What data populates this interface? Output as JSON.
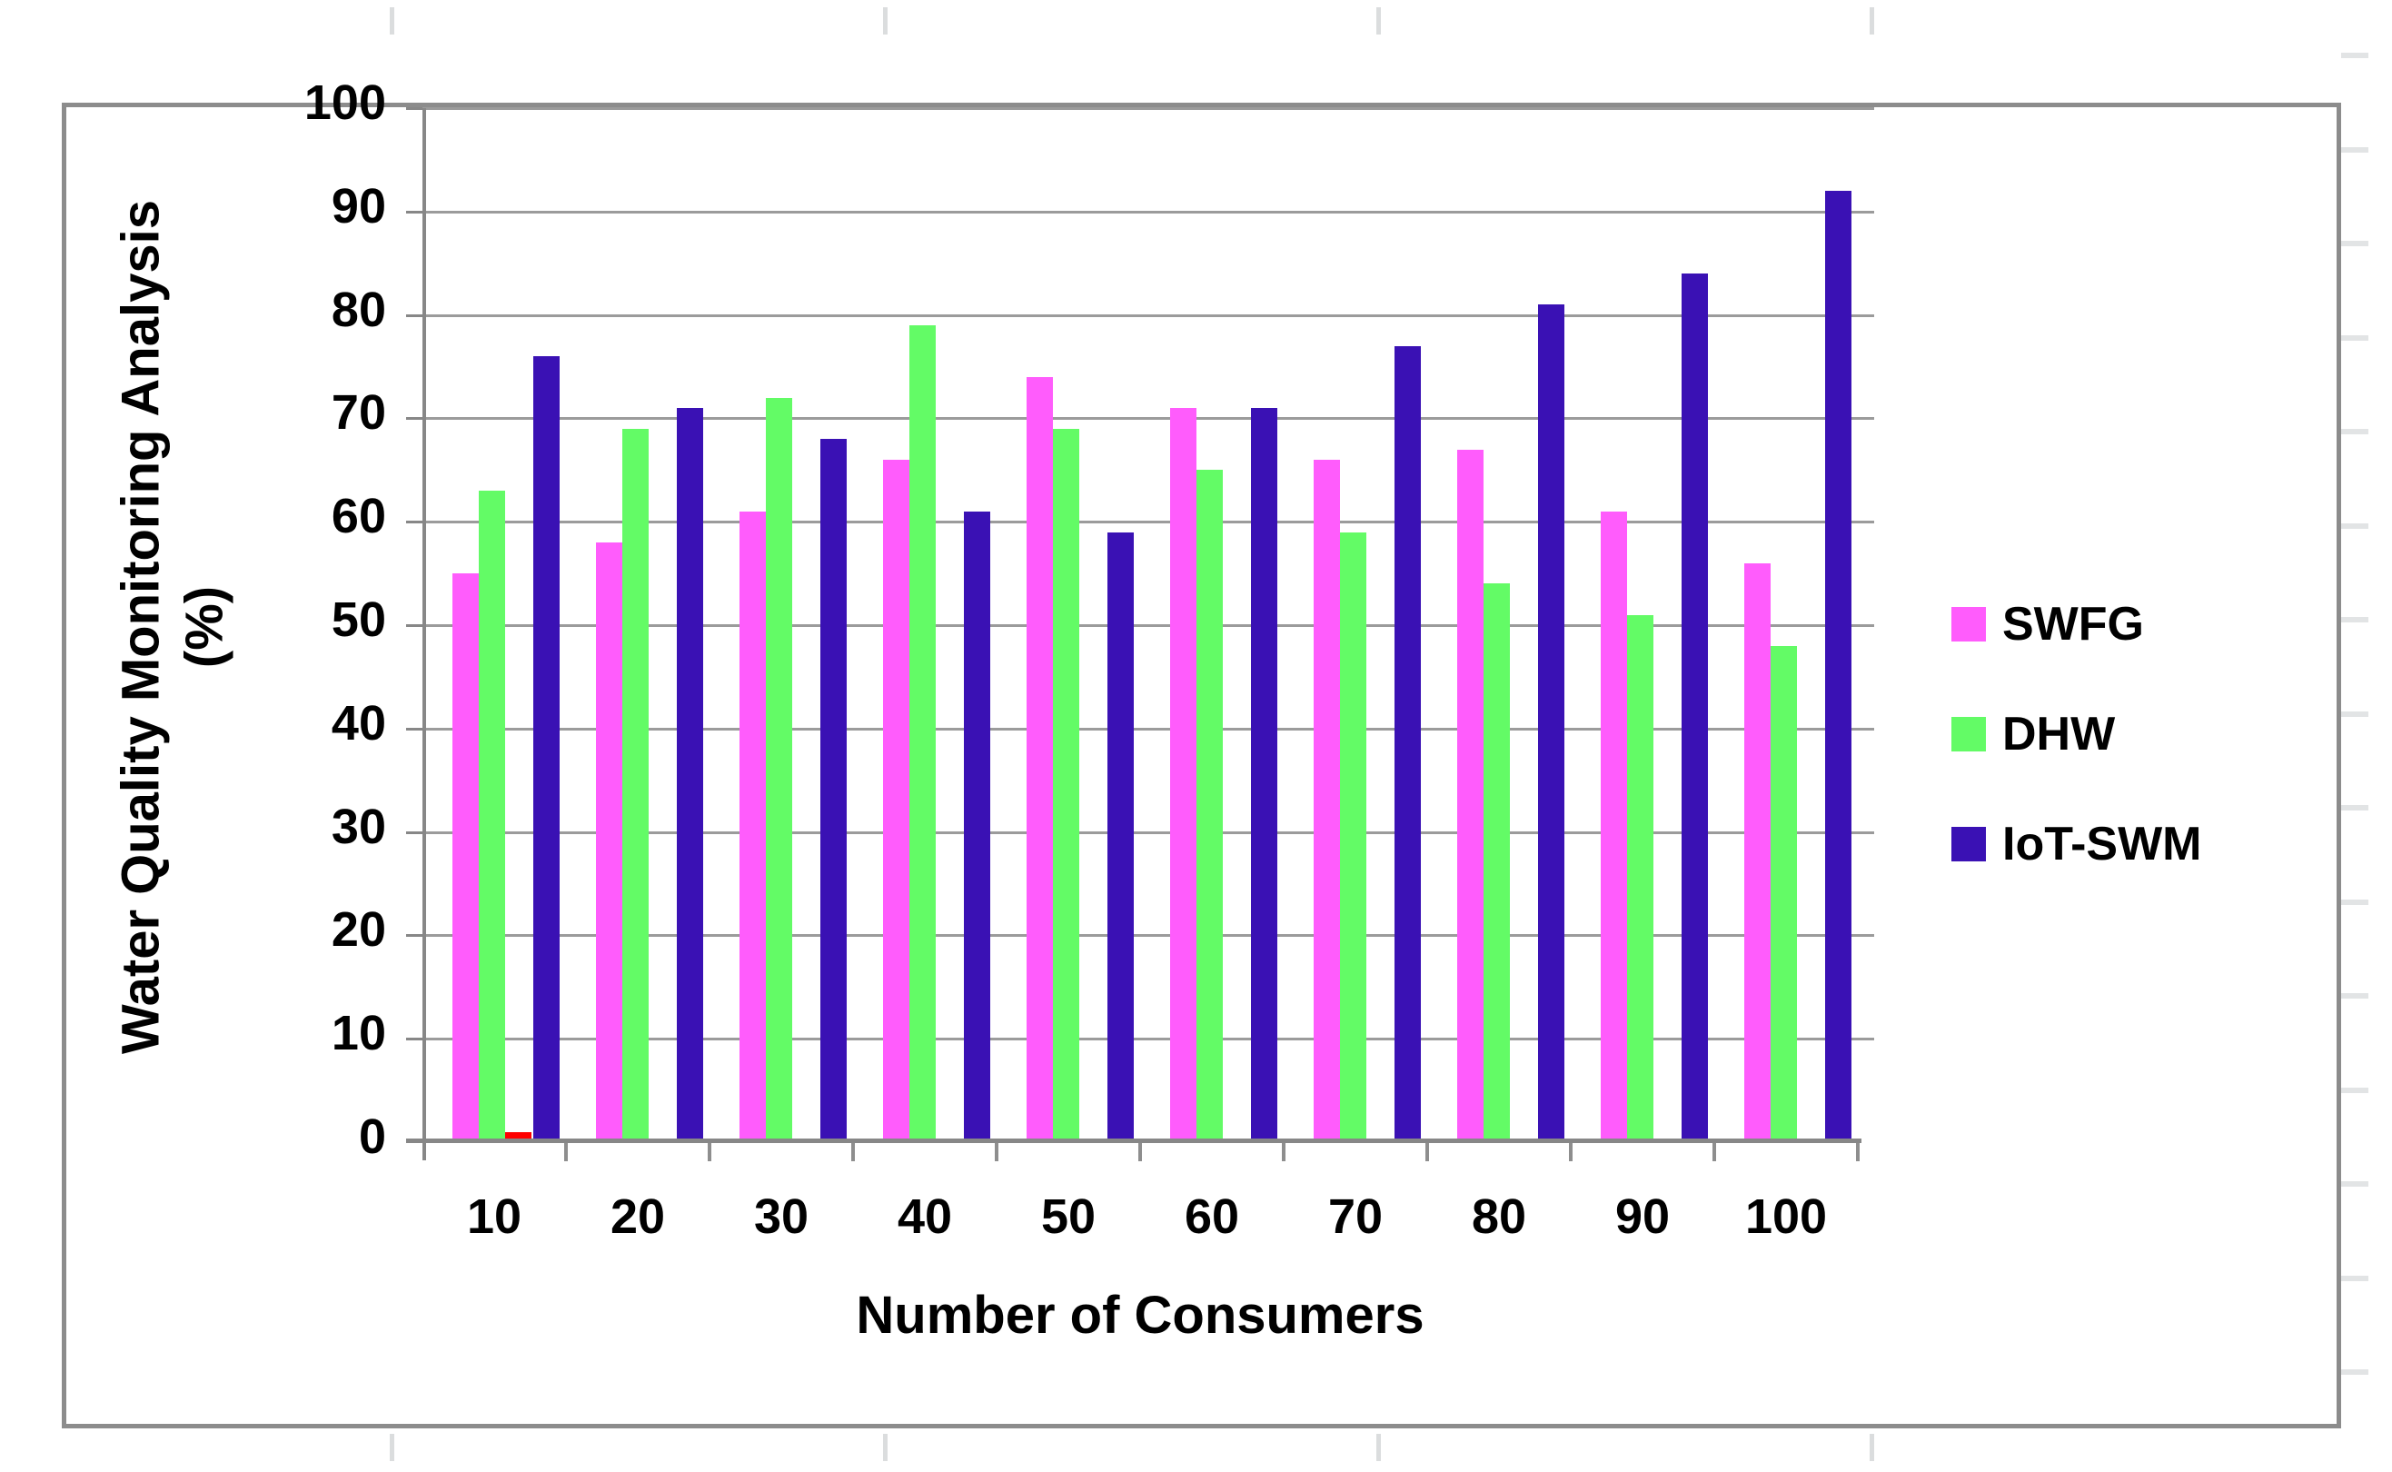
{
  "chart_data": {
    "type": "bar",
    "title": "",
    "xlabel": "Number of Consumers",
    "ylabel_line1": "Water Quality Monitoring Analysis",
    "ylabel_line2": "(%)",
    "categories": [
      "10",
      "20",
      "30",
      "40",
      "50",
      "60",
      "70",
      "80",
      "90",
      "100"
    ],
    "y_ticks": [
      "0",
      "10",
      "20",
      "30",
      "40",
      "50",
      "60",
      "70",
      "80",
      "90",
      "100"
    ],
    "ylim": [
      0,
      100
    ],
    "grid": "horizontal",
    "legend_position": "right",
    "series": [
      {
        "name": "SWFG",
        "color": "#FF5CFC",
        "in_legend": true,
        "values": [
          55,
          58,
          61,
          66,
          74,
          71,
          66,
          67,
          61,
          56
        ]
      },
      {
        "name": "DHW",
        "color": "#63FB66",
        "in_legend": true,
        "values": [
          63,
          69,
          72,
          79,
          69,
          65,
          59,
          54,
          51,
          48
        ]
      },
      {
        "name": "",
        "color": "#FF0000",
        "in_legend": false,
        "values": [
          1,
          0,
          0,
          0,
          0,
          0,
          0,
          0,
          0,
          0
        ]
      },
      {
        "name": "IoT-SWM",
        "color": "#3A11B4",
        "in_legend": true,
        "values": [
          76,
          71,
          68,
          61,
          59,
          71,
          77,
          81,
          84,
          92
        ]
      }
    ],
    "colors": {
      "gridline": "#9B9B9B",
      "axis": "#878787",
      "border": "#8C8C8C",
      "text": "#000000"
    }
  }
}
